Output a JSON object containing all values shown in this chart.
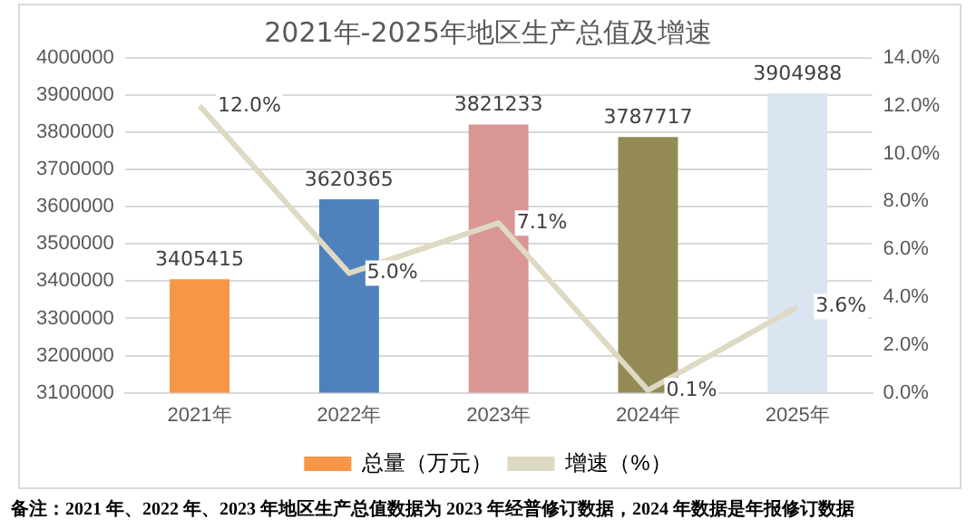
{
  "chart_data": {
    "type": "bar",
    "title": "2021年-2025年地区生产总值及增速",
    "categories": [
      "2021年",
      "2022年",
      "2023年",
      "2024年",
      "2025年"
    ],
    "series": [
      {
        "name": "总量（万元）",
        "color": "#f79646",
        "colors": [
          "#f79646",
          "#4f81bd",
          "#d99694",
          "#948a54",
          "#dbe5f1"
        ],
        "values": [
          3405415,
          3620365,
          3821233,
          3787717,
          3904988
        ]
      },
      {
        "name": "增速（%）",
        "type": "line",
        "axis": "y2",
        "color": "#ddd9c3",
        "values": [
          12.0,
          5.0,
          7.1,
          0.1,
          3.6
        ],
        "value_labels": [
          "12.0%",
          "5.0%",
          "7.1%",
          "0.1%",
          "3.6%"
        ]
      }
    ],
    "ylim": [
      3100000,
      4000000
    ],
    "yticks": [
      3100000,
      3200000,
      3300000,
      3400000,
      3500000,
      3600000,
      3700000,
      3800000,
      3900000,
      4000000
    ],
    "y2lim": [
      0,
      14
    ],
    "y2ticks": [
      {
        "value": 0,
        "label": "0.0%"
      },
      {
        "value": 2,
        "label": "2.0%"
      },
      {
        "value": 4,
        "label": "4.0%"
      },
      {
        "value": 6,
        "label": "6.0%"
      },
      {
        "value": 8,
        "label": "8.0%"
      },
      {
        "value": 10,
        "label": "10.0%"
      },
      {
        "value": 12,
        "label": "12.0%"
      },
      {
        "value": 14,
        "label": "14.0%"
      }
    ],
    "data_labels": true,
    "grid": "y",
    "legend": "bottom",
    "marker": "none",
    "annotations": [
      "备注：2021 年、2022 年、2023 年地区生产总值数据为 2023 年经普修订数据，2024 年数据是年报修订数据"
    ]
  }
}
